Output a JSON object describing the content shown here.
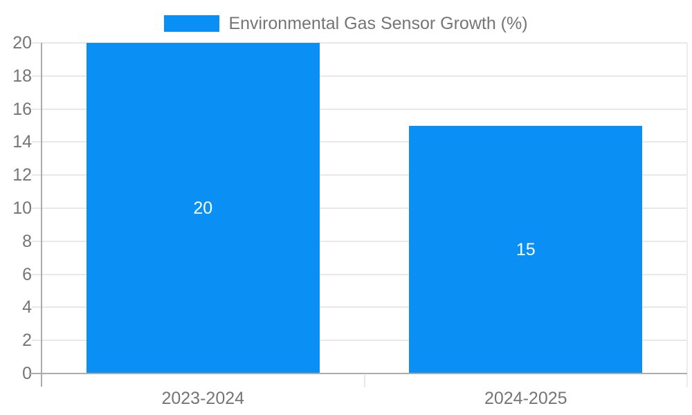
{
  "chart_data": {
    "type": "bar",
    "title": "Environmental Gas Sensor Growth (%)",
    "categories": [
      "2023-2024",
      "2024-2025"
    ],
    "series": [
      {
        "name": "Environmental Gas Sensor Growth (%)",
        "color": "#0a90f4",
        "values": [
          20,
          15
        ]
      }
    ],
    "value_labels": [
      "20",
      "15"
    ],
    "xlabel": "",
    "ylabel": "",
    "ylim": [
      0,
      20
    ],
    "yticks": [
      0,
      2,
      4,
      6,
      8,
      10,
      12,
      14,
      16,
      18,
      20
    ],
    "grid": true,
    "legend_position": "top-center",
    "bar_width_ratio": 0.722
  },
  "style": {
    "accent": "#0a90f4",
    "background": "#ffffff",
    "grid_color": "#e8e8e8",
    "axis_color": "#ababab",
    "right_border_color": "#ececec",
    "text_color": "#757575",
    "bar_label_color": "#ffffff"
  }
}
